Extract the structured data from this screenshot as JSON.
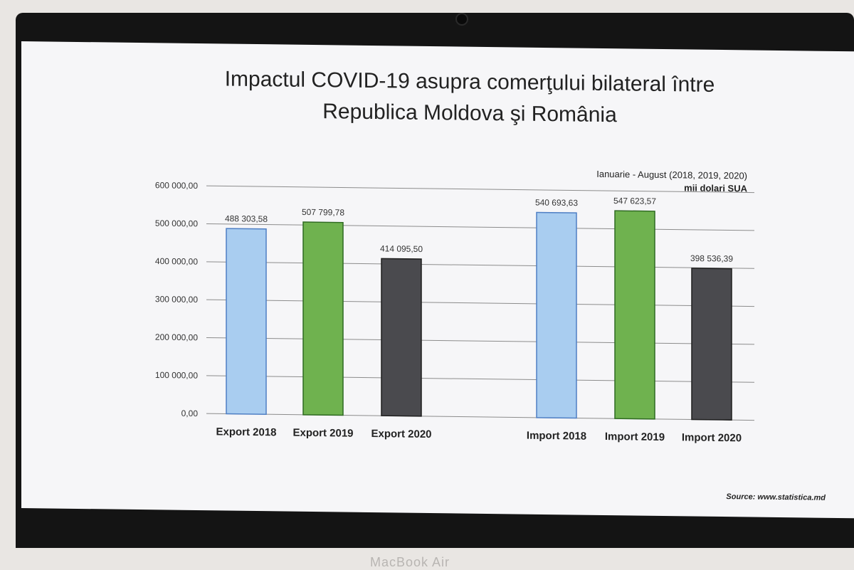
{
  "chart_data": {
    "type": "bar",
    "title_line1": "Impactul COVID-19 asupra comerţului bilateral între",
    "title_line2": "Republica Moldova şi România",
    "period": "Ianuarie - August (2018, 2019, 2020)",
    "unit": "mii dolari SUA",
    "source": "Source: www.statistica.md",
    "ylim": [
      0,
      600000
    ],
    "yticks": [
      "0,00",
      "100 000,00",
      "200 000,00",
      "300 000,00",
      "400 000,00",
      "500 000,00",
      "600 000,00"
    ],
    "categories": [
      "Export 2018",
      "Export 2019",
      "Export 2020",
      "Import 2018",
      "Import 2019",
      "Import 2020"
    ],
    "values": [
      488303.58,
      507799.78,
      414095.5,
      540693.63,
      547623.57,
      398536.39
    ],
    "value_labels": [
      "488 303,58",
      "507 799,78",
      "414 095,50",
      "540 693,63",
      "547 623,57",
      "398 536,39"
    ],
    "colors": [
      "#a9cdf0",
      "#6fb24f",
      "#4a4a4e",
      "#a9cdf0",
      "#6fb24f",
      "#4a4a4e"
    ],
    "grid": true
  },
  "device_label": "MacBook Air"
}
